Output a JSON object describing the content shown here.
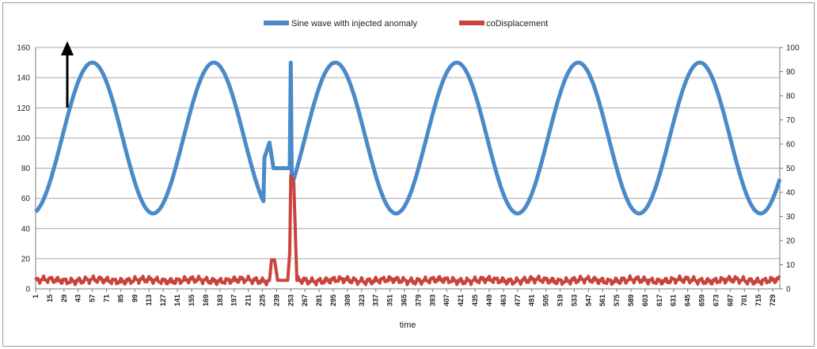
{
  "chart_data": {
    "type": "line",
    "xlabel": "time",
    "legend_position": "top-center",
    "grid": true,
    "y_left": {
      "min": 0,
      "max": 160,
      "ticks": [
        0,
        20,
        40,
        60,
        80,
        100,
        120,
        140,
        160
      ]
    },
    "y_right": {
      "min": 0,
      "max": 100,
      "ticks": [
        0,
        10,
        20,
        30,
        40,
        50,
        60,
        70,
        80,
        90,
        100
      ]
    },
    "x_range": [
      1,
      736
    ],
    "x_tick_labels": [
      "1",
      "15",
      "29",
      "43",
      "57",
      "71",
      "85",
      "99",
      "113",
      "127",
      "141",
      "155",
      "169",
      "183",
      "197",
      "211",
      "225",
      "239",
      "253",
      "267",
      "281",
      "295",
      "309",
      "323",
      "337",
      "351",
      "365",
      "379",
      "393",
      "407",
      "421",
      "435",
      "449",
      "463",
      "477",
      "491",
      "505",
      "519",
      "533",
      "547",
      "561",
      "575",
      "589",
      "603",
      "617",
      "631",
      "645",
      "659",
      "673",
      "687",
      "701",
      "715",
      "729"
    ],
    "series": [
      {
        "name": "Sine wave with injected anomaly",
        "color": "#4a8ac8",
        "axis": "left",
        "sine": {
          "center": 100,
          "amplitude": 50,
          "period": 120,
          "peak_x": 57
        },
        "anomaly": {
          "start": 236,
          "end": 253,
          "points": [
            [
              227,
              87
            ],
            [
              232,
              97
            ],
            [
              236,
              80
            ],
            [
              252,
              80
            ],
            [
              253,
              150
            ]
          ]
        }
      },
      {
        "name": "coDisplacement",
        "color": "#c8443c",
        "axis": "right",
        "baseline": 3.5,
        "spikes": [
          [
            232,
            3.5
          ],
          [
            234,
            12
          ],
          [
            237,
            12
          ],
          [
            240,
            3.5
          ],
          [
            250,
            3.5
          ],
          [
            252,
            15
          ],
          [
            253,
            47
          ],
          [
            256,
            44
          ],
          [
            259,
            3.5
          ]
        ]
      }
    ],
    "annotation": {
      "type": "arrow",
      "direction": "up",
      "color": "#000000"
    }
  }
}
